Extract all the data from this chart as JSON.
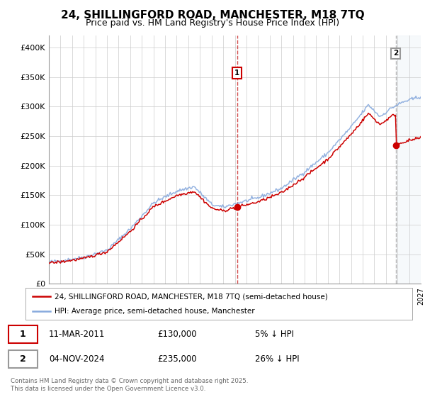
{
  "title": "24, SHILLINGFORD ROAD, MANCHESTER, M18 7TQ",
  "subtitle": "Price paid vs. HM Land Registry's House Price Index (HPI)",
  "line1_color": "#cc0000",
  "line2_color": "#88aadd",
  "vline1_color": "#cc3333",
  "vline2_color": "#aaaaaa",
  "ylim": [
    0,
    420000
  ],
  "yticks": [
    0,
    50000,
    100000,
    150000,
    200000,
    250000,
    300000,
    350000,
    400000
  ],
  "ytick_labels": [
    "£0",
    "£50K",
    "£100K",
    "£150K",
    "£200K",
    "£250K",
    "£300K",
    "£350K",
    "£400K"
  ],
  "annotation1_date": "11-MAR-2011",
  "annotation1_price": "£130,000",
  "annotation1_hpi": "5% ↓ HPI",
  "annotation2_date": "04-NOV-2024",
  "annotation2_price": "£235,000",
  "annotation2_hpi": "26% ↓ HPI",
  "legend1_label": "24, SHILLINGFORD ROAD, MANCHESTER, M18 7TQ (semi-detached house)",
  "legend2_label": "HPI: Average price, semi-detached house, Manchester",
  "footer": "Contains HM Land Registry data © Crown copyright and database right 2025.\nThis data is licensed under the Open Government Licence v3.0.",
  "background_color": "#ffffff",
  "grid_color": "#cccccc",
  "shade_color": "#e8eef5"
}
